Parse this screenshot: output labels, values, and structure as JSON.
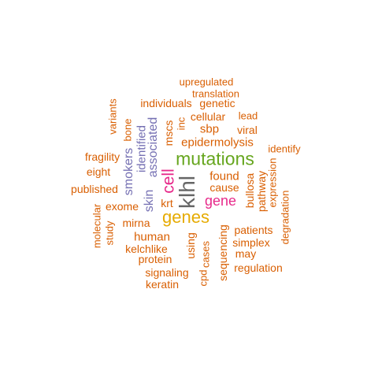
{
  "colors": {
    "orange": "#d95f02",
    "purple": "#7570b3",
    "magenta": "#e7298a",
    "green": "#66a61e",
    "gold": "#e6ab02",
    "gray": "#666666",
    "background": "#ffffff"
  },
  "words": [
    {
      "text": "klhl",
      "color": "#666666",
      "rotated": true
    },
    {
      "text": "genes",
      "color": "#e6ab02",
      "rotated": false
    },
    {
      "text": "mutations",
      "color": "#66a61e",
      "rotated": false
    },
    {
      "text": "cell",
      "color": "#e7298a",
      "rotated": true
    },
    {
      "text": "gene",
      "color": "#e7298a",
      "rotated": false
    },
    {
      "text": "skin",
      "color": "#7570b3",
      "rotated": true
    },
    {
      "text": "associated",
      "color": "#7570b3",
      "rotated": true
    },
    {
      "text": "identified",
      "color": "#7570b3",
      "rotated": true
    },
    {
      "text": "smokers",
      "color": "#7570b3",
      "rotated": true
    },
    {
      "text": "upregulated",
      "color": "#d95f02",
      "rotated": false
    },
    {
      "text": "translation",
      "color": "#d95f02",
      "rotated": false
    },
    {
      "text": "individuals",
      "color": "#d95f02",
      "rotated": false
    },
    {
      "text": "genetic",
      "color": "#d95f02",
      "rotated": false
    },
    {
      "text": "variants",
      "color": "#d95f02",
      "rotated": true
    },
    {
      "text": "bone",
      "color": "#d95f02",
      "rotated": true
    },
    {
      "text": "mscs",
      "color": "#d95f02",
      "rotated": true
    },
    {
      "text": "inc",
      "color": "#d95f02",
      "rotated": true
    },
    {
      "text": "cellular",
      "color": "#d95f02",
      "rotated": false
    },
    {
      "text": "lead",
      "color": "#d95f02",
      "rotated": false
    },
    {
      "text": "sbp",
      "color": "#d95f02",
      "rotated": false
    },
    {
      "text": "viral",
      "color": "#d95f02",
      "rotated": false
    },
    {
      "text": "epidermolysis",
      "color": "#d95f02",
      "rotated": false
    },
    {
      "text": "identify",
      "color": "#d95f02",
      "rotated": false
    },
    {
      "text": "fragility",
      "color": "#d95f02",
      "rotated": false
    },
    {
      "text": "eight",
      "color": "#d95f02",
      "rotated": false
    },
    {
      "text": "found",
      "color": "#d95f02",
      "rotated": false
    },
    {
      "text": "cause",
      "color": "#d95f02",
      "rotated": false
    },
    {
      "text": "published",
      "color": "#d95f02",
      "rotated": false
    },
    {
      "text": "krt",
      "color": "#d95f02",
      "rotated": false
    },
    {
      "text": "bullosa",
      "color": "#d95f02",
      "rotated": true
    },
    {
      "text": "pathway",
      "color": "#d95f02",
      "rotated": true
    },
    {
      "text": "expression",
      "color": "#d95f02",
      "rotated": true
    },
    {
      "text": "exome",
      "color": "#d95f02",
      "rotated": false
    },
    {
      "text": "degradation",
      "color": "#d95f02",
      "rotated": true
    },
    {
      "text": "mirna",
      "color": "#d95f02",
      "rotated": false
    },
    {
      "text": "molecular",
      "color": "#d95f02",
      "rotated": true
    },
    {
      "text": "study",
      "color": "#d95f02",
      "rotated": true
    },
    {
      "text": "human",
      "color": "#d95f02",
      "rotated": false
    },
    {
      "text": "patients",
      "color": "#d95f02",
      "rotated": false
    },
    {
      "text": "sequencing",
      "color": "#d95f02",
      "rotated": true
    },
    {
      "text": "simplex",
      "color": "#d95f02",
      "rotated": false
    },
    {
      "text": "using",
      "color": "#d95f02",
      "rotated": true
    },
    {
      "text": "kelchlike",
      "color": "#d95f02",
      "rotated": false
    },
    {
      "text": "may",
      "color": "#d95f02",
      "rotated": false
    },
    {
      "text": "protein",
      "color": "#d95f02",
      "rotated": false
    },
    {
      "text": "cases",
      "color": "#d95f02",
      "rotated": true
    },
    {
      "text": "cpd",
      "color": "#d95f02",
      "rotated": true
    },
    {
      "text": "regulation",
      "color": "#d95f02",
      "rotated": false
    },
    {
      "text": "signaling",
      "color": "#d95f02",
      "rotated": false
    },
    {
      "text": "keratin",
      "color": "#d95f02",
      "rotated": false
    }
  ]
}
